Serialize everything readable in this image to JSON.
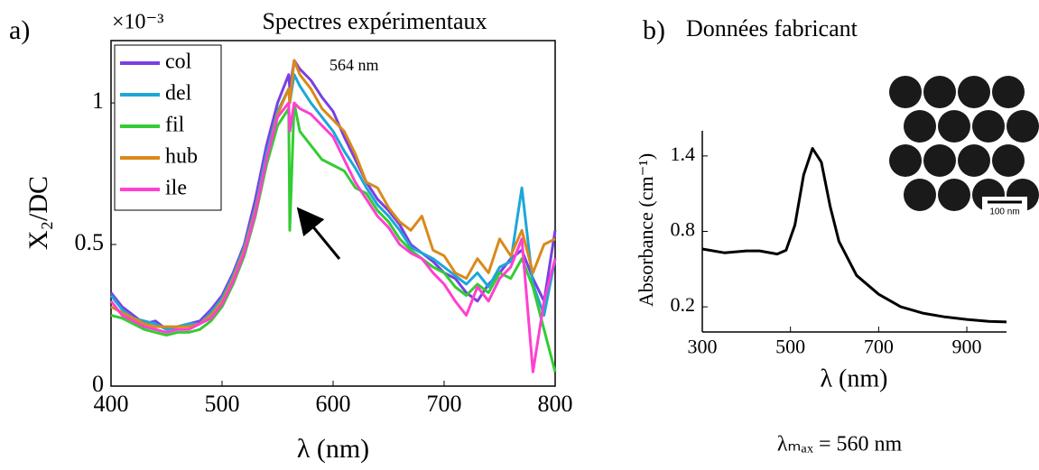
{
  "chart_data": [
    {
      "type": "line",
      "panel": "a)",
      "title": "Spectres expérimentaux",
      "multiplier": "×10⁻³",
      "x_label": "λ (nm)",
      "y_label": "X₂/DC",
      "annotation": "564 nm",
      "x": [
        400,
        410,
        420,
        430,
        440,
        450,
        460,
        470,
        480,
        490,
        500,
        510,
        520,
        530,
        540,
        550,
        560,
        561,
        565,
        570,
        580,
        590,
        600,
        610,
        620,
        630,
        640,
        650,
        660,
        670,
        680,
        690,
        700,
        710,
        720,
        730,
        740,
        750,
        760,
        770,
        780,
        790,
        800
      ],
      "series": [
        {
          "name": "col",
          "color": "#7b3fe4",
          "values": [
            0.33,
            0.28,
            0.25,
            0.22,
            0.23,
            0.2,
            0.21,
            0.22,
            0.23,
            0.27,
            0.32,
            0.4,
            0.5,
            0.66,
            0.85,
            1.0,
            1.1,
            1.05,
            1.15,
            1.12,
            1.08,
            1.02,
            0.97,
            0.88,
            0.8,
            0.72,
            0.66,
            0.62,
            0.57,
            0.5,
            0.47,
            0.44,
            0.4,
            0.38,
            0.33,
            0.3,
            0.36,
            0.4,
            0.45,
            0.48,
            0.38,
            0.3,
            0.55
          ]
        },
        {
          "name": "del",
          "color": "#1ca7d8",
          "values": [
            0.32,
            0.27,
            0.24,
            0.23,
            0.22,
            0.2,
            0.21,
            0.22,
            0.22,
            0.26,
            0.31,
            0.39,
            0.49,
            0.63,
            0.82,
            0.97,
            1.05,
            1.0,
            1.1,
            1.06,
            1.0,
            0.95,
            0.9,
            0.83,
            0.77,
            0.7,
            0.64,
            0.6,
            0.55,
            0.49,
            0.47,
            0.45,
            0.42,
            0.39,
            0.36,
            0.4,
            0.35,
            0.42,
            0.44,
            0.7,
            0.36,
            0.25,
            0.45
          ]
        },
        {
          "name": "fil",
          "color": "#33cc33",
          "values": [
            0.25,
            0.24,
            0.22,
            0.2,
            0.19,
            0.18,
            0.19,
            0.19,
            0.2,
            0.23,
            0.28,
            0.36,
            0.46,
            0.6,
            0.78,
            0.92,
            0.98,
            0.55,
            1.0,
            0.9,
            0.85,
            0.8,
            0.78,
            0.76,
            0.7,
            0.68,
            0.62,
            0.58,
            0.52,
            0.48,
            0.45,
            0.42,
            0.4,
            0.35,
            0.32,
            0.36,
            0.33,
            0.4,
            0.38,
            0.45,
            0.35,
            0.2,
            0.05
          ]
        },
        {
          "name": "hub",
          "color": "#d98a1a",
          "values": [
            0.28,
            0.26,
            0.24,
            0.22,
            0.21,
            0.21,
            0.21,
            0.21,
            0.22,
            0.25,
            0.3,
            0.38,
            0.48,
            0.62,
            0.8,
            0.96,
            1.05,
            1.0,
            1.15,
            1.1,
            1.05,
            0.98,
            0.94,
            0.9,
            0.82,
            0.72,
            0.7,
            0.63,
            0.58,
            0.55,
            0.6,
            0.48,
            0.46,
            0.4,
            0.38,
            0.45,
            0.4,
            0.52,
            0.46,
            0.55,
            0.4,
            0.5,
            0.52
          ]
        },
        {
          "name": "ile",
          "color": "#ff40d0",
          "values": [
            0.3,
            0.25,
            0.23,
            0.21,
            0.2,
            0.19,
            0.2,
            0.2,
            0.22,
            0.24,
            0.29,
            0.37,
            0.47,
            0.61,
            0.8,
            0.95,
            1.0,
            0.9,
            1.0,
            0.98,
            0.96,
            0.92,
            0.88,
            0.8,
            0.72,
            0.66,
            0.6,
            0.56,
            0.5,
            0.47,
            0.45,
            0.4,
            0.36,
            0.3,
            0.25,
            0.35,
            0.3,
            0.38,
            0.42,
            0.52,
            0.05,
            0.3,
            0.45
          ]
        }
      ],
      "xlim": [
        400,
        800
      ],
      "ylim": [
        0,
        1.22
      ],
      "xticks": [
        400,
        500,
        600,
        700,
        800
      ],
      "yticks": [
        0,
        0.5,
        1
      ],
      "legend": "upper left",
      "frame": true
    },
    {
      "type": "line",
      "panel": "b)",
      "title": "Données fabricant",
      "x_label": "λ (nm)",
      "y_label": "Absorbance (cm⁻¹)",
      "note": "λₘₐₓ = 560 nm",
      "inset_scale": "100 nm",
      "x": [
        300,
        350,
        400,
        430,
        470,
        490,
        510,
        530,
        550,
        570,
        590,
        610,
        650,
        700,
        750,
        800,
        850,
        900,
        950,
        990
      ],
      "series": [
        {
          "color": "#000000",
          "values": [
            0.66,
            0.63,
            0.645,
            0.645,
            0.62,
            0.65,
            0.85,
            1.25,
            1.46,
            1.35,
            1.0,
            0.72,
            0.45,
            0.3,
            0.2,
            0.15,
            0.12,
            0.1,
            0.085,
            0.08
          ]
        }
      ],
      "xlim": [
        300,
        990
      ],
      "ylim": [
        0,
        1.6
      ],
      "xticks": [
        300,
        500,
        700,
        900
      ],
      "yticks": [
        0.2,
        0.8,
        1.4
      ],
      "frame": false
    }
  ]
}
